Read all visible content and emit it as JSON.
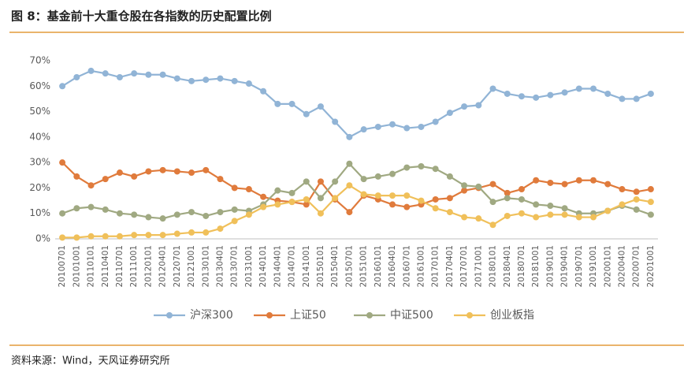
{
  "chart_data": {
    "type": "line",
    "title": "图 8：基金前十大重仓股在各指数的历史配置比例",
    "source": "资料来源：Wind，天风证券研究所",
    "categories": [
      "20100701",
      "20101001",
      "20110101",
      "20110401",
      "20110701",
      "20111001",
      "20120101",
      "20120401",
      "20120701",
      "20121001",
      "20130101",
      "20130401",
      "20130701",
      "20131001",
      "20140101",
      "20140401",
      "20140701",
      "20141001",
      "20150101",
      "20150401",
      "20150701",
      "20151001",
      "20160101",
      "20160401",
      "20160701",
      "20161001",
      "20170101",
      "20170401",
      "20170701",
      "20171001",
      "20180101",
      "20180401",
      "20180701",
      "20181001",
      "20190101",
      "20190401",
      "20190701",
      "20191001",
      "20200101",
      "20200401",
      "20200701",
      "20201001"
    ],
    "series": [
      {
        "name": "沪深300",
        "color": "#91b4d6",
        "values": [
          60,
          63.5,
          66,
          65,
          63.5,
          65,
          64.5,
          64.5,
          63,
          62,
          62.5,
          63,
          62,
          61,
          58,
          53,
          53,
          49,
          52,
          46,
          40,
          43,
          44,
          45,
          43.5,
          44,
          46,
          49.5,
          52,
          52.5,
          59,
          57,
          56,
          55.5,
          56.5,
          57.5,
          59,
          59,
          57,
          55,
          55,
          57
        ]
      },
      {
        "name": "上证50",
        "color": "#e07b3c",
        "values": [
          30,
          24.5,
          21,
          23.5,
          26,
          24.5,
          26.5,
          27,
          26.5,
          26,
          27,
          23.5,
          20,
          19.5,
          16.5,
          15,
          14.5,
          13.5,
          22.5,
          15.5,
          10.5,
          17,
          15.5,
          13.5,
          12.5,
          13.5,
          15.5,
          16,
          19,
          20,
          21.5,
          18,
          19.5,
          23,
          22,
          21.5,
          23,
          23,
          21.5,
          19.5,
          18.5,
          19.5
        ]
      },
      {
        "name": "中证500",
        "color": "#a0a982",
        "values": [
          10,
          12,
          12.5,
          11.5,
          10,
          9.5,
          8.5,
          8,
          9.5,
          10.5,
          9,
          10.5,
          11.5,
          11,
          13.5,
          19,
          18,
          22.5,
          16,
          22.5,
          29.5,
          23.5,
          24.5,
          25.5,
          28,
          28.5,
          27.5,
          24.5,
          21,
          20.5,
          14.5,
          16,
          15.5,
          13.5,
          13,
          12,
          10,
          10,
          11,
          13,
          11.5,
          9.5
        ]
      },
      {
        "name": "创业板指",
        "color": "#f0c05a",
        "values": [
          0.5,
          0.5,
          1,
          1,
          1,
          1.5,
          1.5,
          1.5,
          2,
          2.5,
          2.5,
          4,
          7,
          9.5,
          12.5,
          13.5,
          14.5,
          15.5,
          10,
          16,
          21,
          17.5,
          17,
          17,
          17,
          15,
          12,
          10.5,
          8.5,
          8,
          5.5,
          9,
          10,
          8.5,
          9.5,
          9.5,
          8.5,
          8.5,
          11,
          13.5,
          15.5,
          14.5
        ]
      }
    ],
    "ylim": [
      0,
      70
    ],
    "yticks": [
      {
        "value": 0,
        "label": "0%"
      },
      {
        "value": 10,
        "label": "10%"
      },
      {
        "value": 20,
        "label": "20%"
      },
      {
        "value": 30,
        "label": "30%"
      },
      {
        "value": 40,
        "label": "40%"
      },
      {
        "value": 50,
        "label": "50%"
      },
      {
        "value": 60,
        "label": "60%"
      },
      {
        "value": 70,
        "label": "70%"
      }
    ],
    "grid": false,
    "legend": "bottom"
  }
}
